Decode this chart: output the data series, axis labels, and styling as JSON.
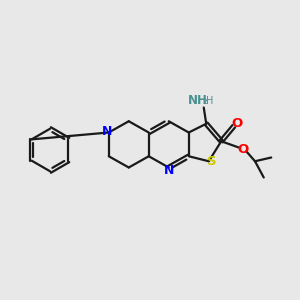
{
  "background_color": "#e8e8e8",
  "bond_color": "#1a1a1a",
  "N_color": "#0000ff",
  "S_color": "#cccc00",
  "O_color": "#ff0000",
  "NH2_color": "#4a9090",
  "figsize": [
    3.0,
    3.0
  ],
  "dpi": 100,
  "xlim": [
    0,
    12
  ],
  "ylim": [
    0,
    12
  ]
}
